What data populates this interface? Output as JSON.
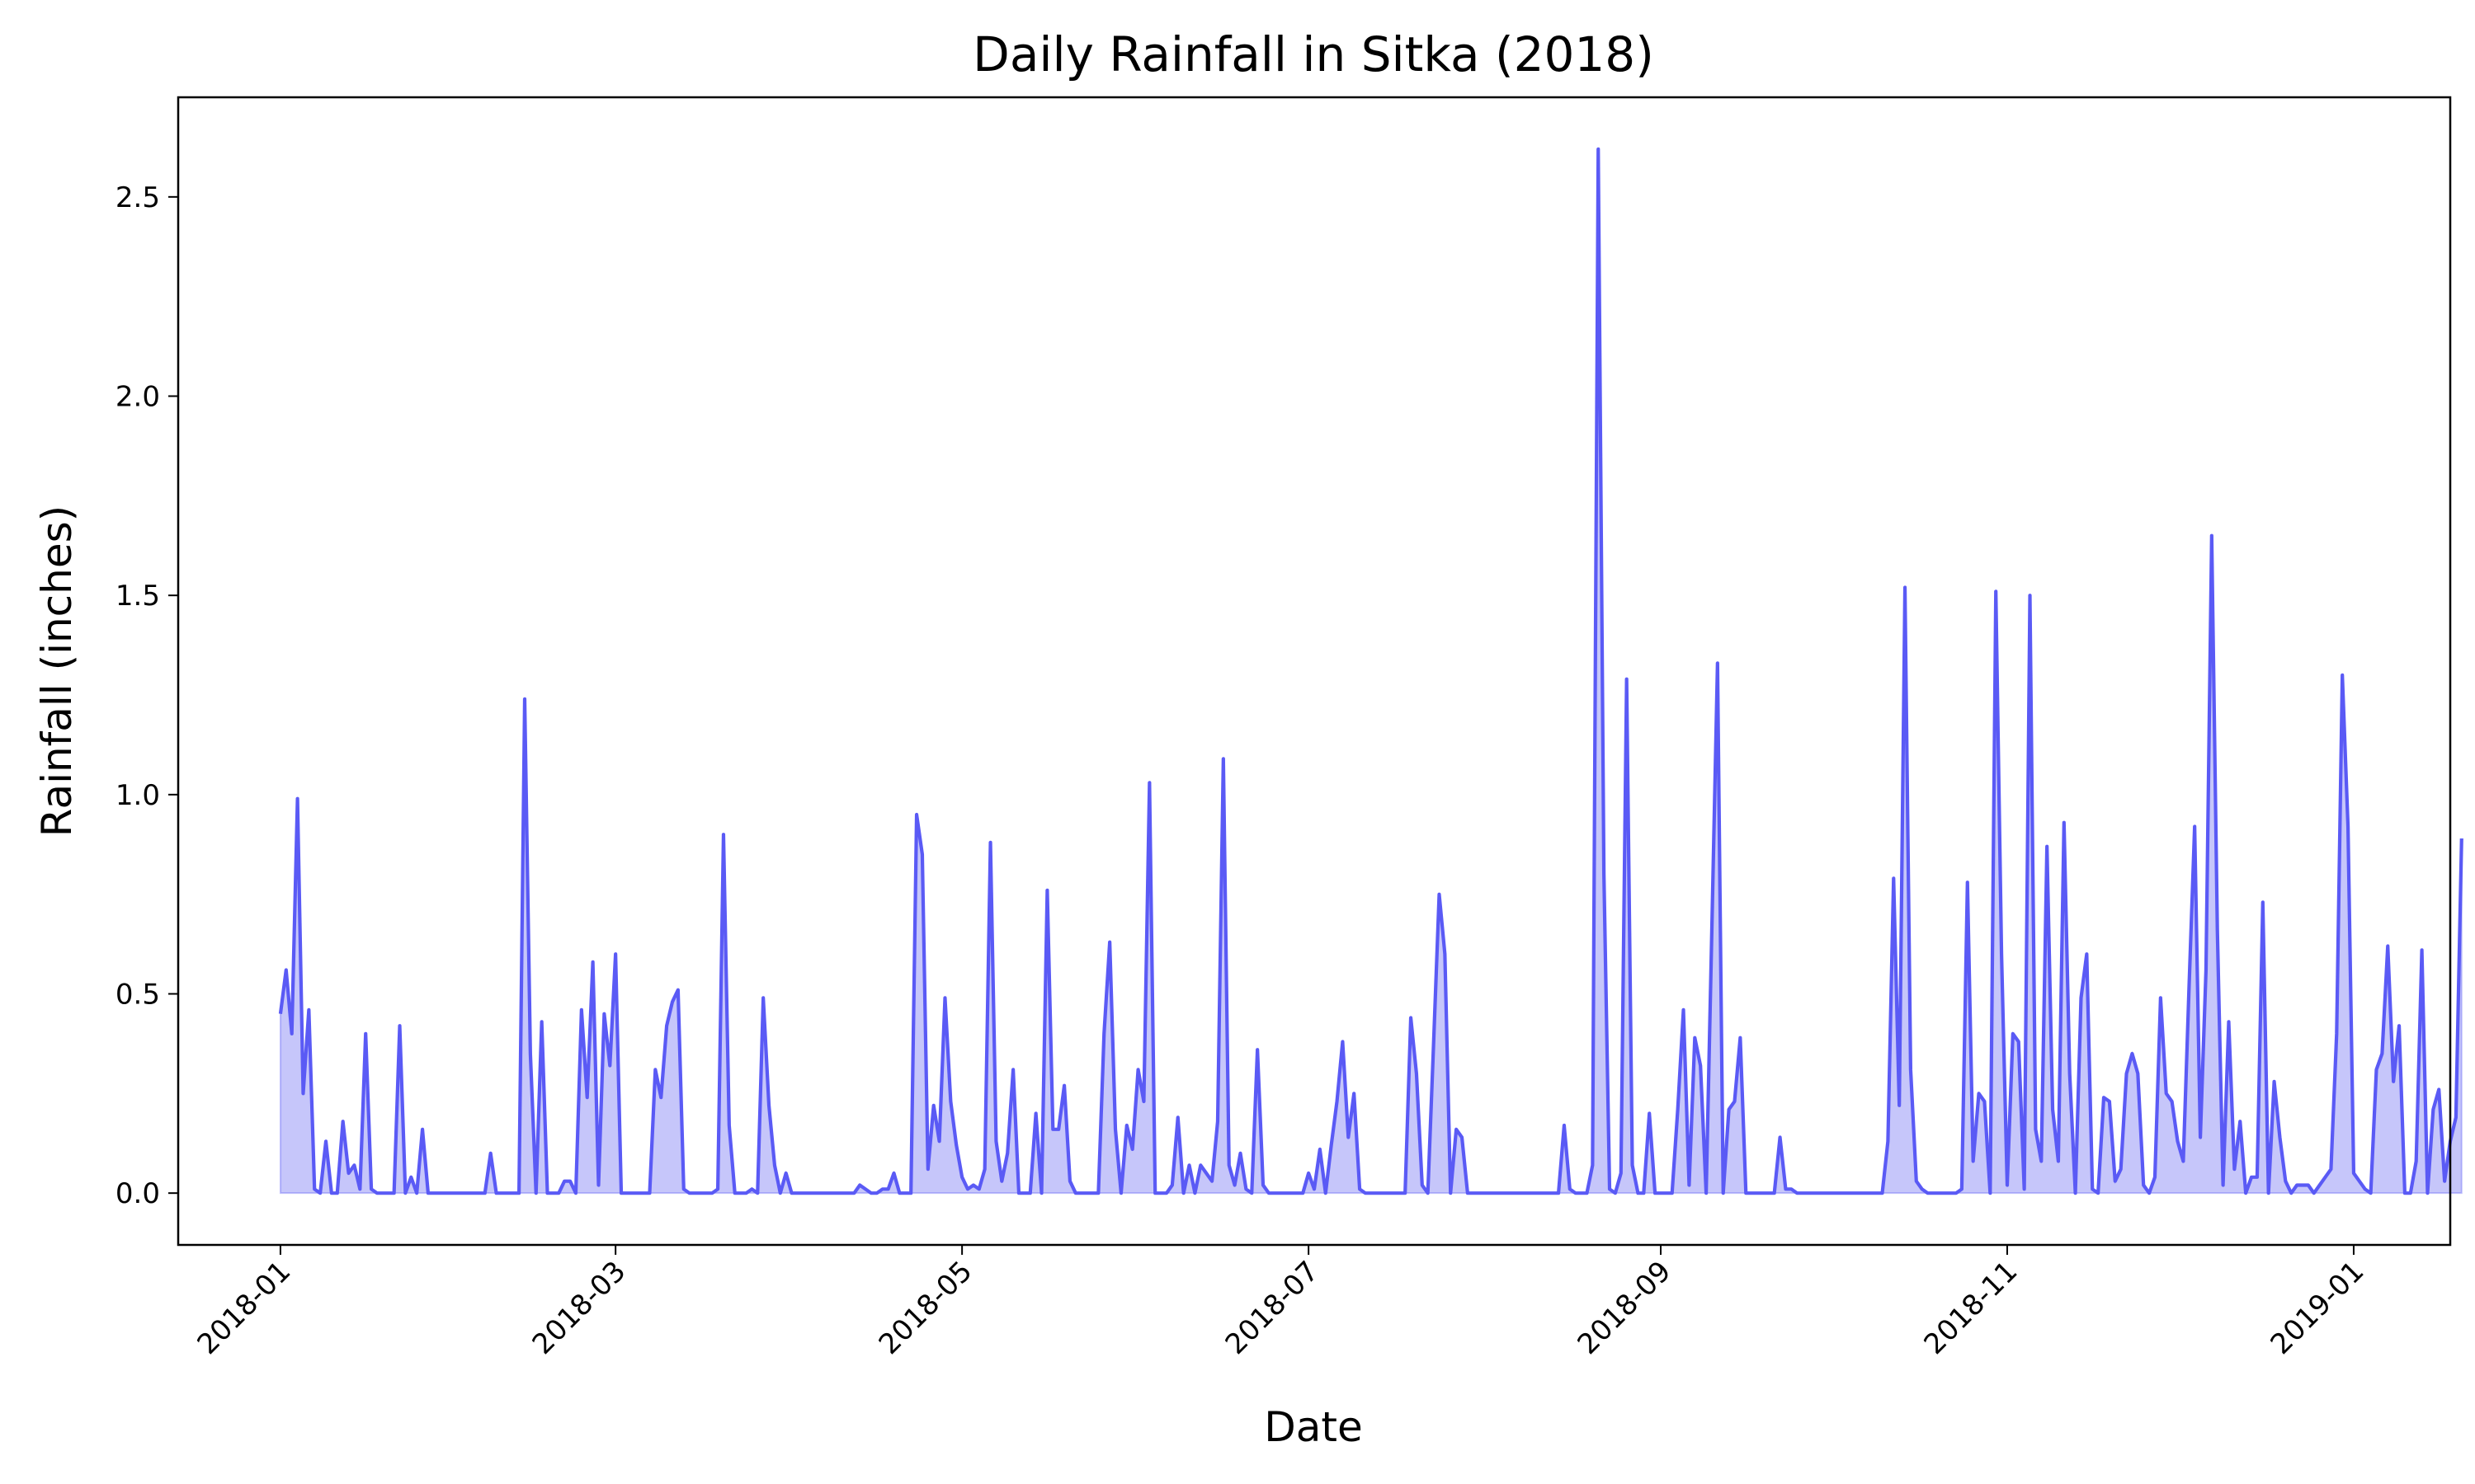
{
  "chart_data": {
    "type": "area",
    "title": "Daily Rainfall in Sitka (2018)",
    "xlabel": "Date",
    "ylabel": "Rainfall (inches)",
    "x_type": "date",
    "x_start": "2018-01-01",
    "x_end": "2018-12-31",
    "xlim": [
      "2017-12-14",
      "2019-01-18"
    ],
    "ylim": [
      -0.13,
      2.75
    ],
    "x_ticks": [
      "2018-01-01",
      "2018-03-01",
      "2018-05-01",
      "2018-07-01",
      "2018-09-01",
      "2018-11-01",
      "2019-01-01"
    ],
    "x_tick_labels": [
      "2018-01",
      "2018-03",
      "2018-05",
      "2018-07",
      "2018-09",
      "2018-11",
      "2019-01"
    ],
    "y_ticks": [
      0.0,
      0.5,
      1.0,
      1.5,
      2.0,
      2.5
    ],
    "y_tick_labels": [
      "0.0",
      "0.5",
      "1.0",
      "1.5",
      "2.0",
      "2.5"
    ],
    "grid": false,
    "legend": "none",
    "colors": {
      "line": "#5a5af5",
      "fill": "#c6c6fa"
    },
    "series": [
      {
        "values": [
          0.45,
          0.56,
          0.4,
          0.99,
          0.25,
          0.46,
          0.01,
          0.0,
          0.13,
          0.0,
          0.0,
          0.18,
          0.05,
          0.07,
          0.01,
          0.4,
          0.01,
          0.0,
          0.0,
          0.0,
          0.0,
          0.42,
          0.0,
          0.04,
          0.0,
          0.16,
          0.0,
          0.0,
          0.0,
          0.0,
          0.0,
          0.0,
          0.0,
          0.0,
          0.0,
          0.0,
          0.0,
          0.1,
          0.0,
          0.0,
          0.0,
          0.0,
          0.0,
          1.24,
          0.35,
          0.0,
          0.43,
          0.0,
          0.0,
          0.0,
          0.03,
          0.03,
          0.0,
          0.46,
          0.24,
          0.58,
          0.02,
          0.45,
          0.32,
          0.6,
          0.0,
          0.0,
          0.0,
          0.0,
          0.0,
          0.0,
          0.31,
          0.24,
          0.42,
          0.48,
          0.51,
          0.01,
          0.0,
          0.0,
          0.0,
          0.0,
          0.0,
          0.01,
          0.9,
          0.17,
          0.0,
          0.0,
          0.0,
          0.01,
          0.0,
          0.49,
          0.22,
          0.07,
          0.0,
          0.05,
          0.0,
          0.0,
          0.0,
          0.0,
          0.0,
          0.0,
          0.0,
          0.0,
          0.0,
          0.0,
          0.0,
          0.0,
          0.02,
          0.01,
          0.0,
          0.0,
          0.01,
          0.01,
          0.05,
          0.0,
          0.0,
          0.0,
          0.95,
          0.85,
          0.06,
          0.22,
          0.13,
          0.49,
          0.23,
          0.12,
          0.04,
          0.01,
          0.02,
          0.01,
          0.06,
          0.88,
          0.13,
          0.03,
          0.1,
          0.31,
          0.0,
          0.0,
          0.0,
          0.2,
          0.0,
          0.76,
          0.16,
          0.16,
          0.27,
          0.03,
          0.0,
          0.0,
          0.0,
          0.0,
          0.0,
          0.4,
          0.63,
          0.16,
          0.0,
          0.17,
          0.11,
          0.31,
          0.23,
          1.03,
          0.0,
          0.0,
          0.0,
          0.02,
          0.19,
          0.0,
          0.07,
          0.0,
          0.07,
          0.05,
          0.03,
          0.18,
          1.09,
          0.07,
          0.02,
          0.1,
          0.01,
          0.0,
          0.36,
          0.02,
          0.0,
          0.0,
          0.0,
          0.0,
          0.0,
          0.0,
          0.0,
          0.05,
          0.01,
          0.11,
          0.0,
          0.12,
          0.23,
          0.38,
          0.14,
          0.25,
          0.01,
          0.0,
          0.0,
          0.0,
          0.0,
          0.0,
          0.0,
          0.0,
          0.0,
          0.44,
          0.3,
          0.02,
          0.0,
          0.37,
          0.75,
          0.6,
          0.0,
          0.16,
          0.14,
          0.0,
          0.0,
          0.0,
          0.0,
          0.0,
          0.0,
          0.0,
          0.0,
          0.0,
          0.0,
          0.0,
          0.0,
          0.0,
          0.0,
          0.0,
          0.0,
          0.0,
          0.17,
          0.01,
          0.0,
          0.0,
          0.0,
          0.07,
          2.62,
          0.8,
          0.01,
          0.0,
          0.05,
          1.29,
          0.07,
          0.0,
          0.0,
          0.2,
          0.0,
          0.0,
          0.0,
          0.0,
          0.21,
          0.46,
          0.02,
          0.39,
          0.32,
          0.0,
          0.66,
          1.33,
          0.0,
          0.21,
          0.23,
          0.39,
          0.0,
          0.0,
          0.0,
          0.0,
          0.0,
          0.0,
          0.14,
          0.01,
          0.01,
          0.0,
          0.0,
          0.0,
          0.0,
          0.0,
          0.0,
          0.0,
          0.0,
          0.0,
          0.0,
          0.0,
          0.0,
          0.0,
          0.0,
          0.0,
          0.0,
          0.13,
          0.79,
          0.22,
          1.52,
          0.31,
          0.03,
          0.01,
          0.0,
          0.0,
          0.0,
          0.0,
          0.0,
          0.0,
          0.01,
          0.78,
          0.08,
          0.25,
          0.23,
          0.0,
          1.51,
          0.6,
          0.02,
          0.4,
          0.38,
          0.01,
          1.5,
          0.16,
          0.08,
          0.87,
          0.21,
          0.08,
          0.93,
          0.3,
          0.0,
          0.49,
          0.6,
          0.01,
          0.0,
          0.24,
          0.23,
          0.03,
          0.06,
          0.3,
          0.35,
          0.3,
          0.02,
          0.0,
          0.04,
          0.49,
          0.25,
          0.23,
          0.13,
          0.08,
          0.51,
          0.92,
          0.14,
          0.56,
          1.65,
          0.66,
          0.02,
          0.43,
          0.06,
          0.18,
          0.0,
          0.04,
          0.04,
          0.73,
          0.0,
          0.28,
          0.14,
          0.03,
          0.0,
          0.02,
          0.02,
          0.02,
          0.0,
          0.02,
          0.04,
          0.06,
          0.4,
          1.3,
          0.92,
          0.05,
          0.03,
          0.01,
          0.0,
          0.31,
          0.35,
          0.62,
          0.28,
          0.42,
          0.0,
          0.0,
          0.08,
          0.61,
          0.0,
          0.21,
          0.26,
          0.03,
          0.13,
          0.19,
          0.89
        ]
      }
    ]
  }
}
